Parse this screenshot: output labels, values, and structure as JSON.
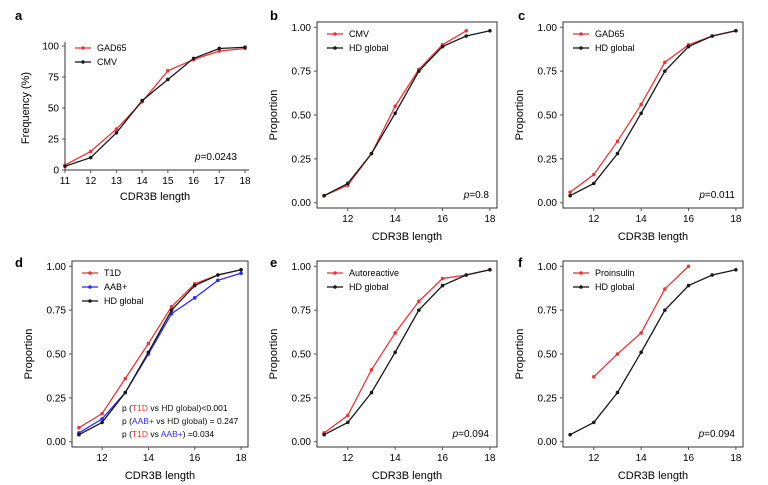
{
  "figure": {
    "panels": [
      "a",
      "b",
      "c",
      "d",
      "e",
      "f"
    ]
  },
  "colors": {
    "red": "#e8373a",
    "black": "#1a1a1a",
    "blue": "#2c2cf0",
    "axis": "#333333",
    "grid_tick": "#555555"
  },
  "chart_data": [
    {
      "panel": "a",
      "type": "line",
      "xlabel": "CDR3B length",
      "ylabel": "Frequency (%)",
      "xlim": [
        11,
        18
      ],
      "ylim": [
        0,
        100
      ],
      "xticks": [
        11,
        12,
        13,
        14,
        15,
        16,
        17,
        18
      ],
      "yticks": [
        0,
        25,
        50,
        75,
        100
      ],
      "ytick_labels": [
        "0",
        "25",
        "50",
        "75",
        "100"
      ],
      "legend": "top-left",
      "pvalue": "=0.0243",
      "series": [
        {
          "name": "GAD65",
          "color": "red",
          "x": [
            11,
            12,
            13,
            14,
            15,
            16,
            17,
            18
          ],
          "y": [
            4,
            15,
            33,
            55,
            80,
            89,
            96,
            98
          ]
        },
        {
          "name": "CMV",
          "color": "black",
          "x": [
            11,
            12,
            13,
            14,
            15,
            16,
            17,
            18
          ],
          "y": [
            3,
            10,
            30,
            56,
            73,
            90,
            98,
            99
          ]
        }
      ]
    },
    {
      "panel": "b",
      "type": "line",
      "xlabel": "CDR3B length",
      "ylabel": "Proportion",
      "xlim": [
        10.7,
        18.3
      ],
      "ylim": [
        -0.03,
        1.03
      ],
      "xticks": [
        12,
        14,
        16,
        18
      ],
      "yticks": [
        0,
        0.25,
        0.5,
        0.75,
        1
      ],
      "ytick_labels": [
        "0.00",
        "0.25",
        "0.50",
        "0.75",
        "1.00"
      ],
      "legend": "top-left",
      "pvalue": "=0.8",
      "series": [
        {
          "name": "CMV",
          "color": "red",
          "x": [
            11,
            12,
            13,
            14,
            15,
            16,
            17
          ],
          "y": [
            0.04,
            0.1,
            0.28,
            0.55,
            0.76,
            0.9,
            0.98
          ]
        },
        {
          "name": "HD global",
          "color": "black",
          "x": [
            11,
            12,
            13,
            14,
            15,
            16,
            17,
            18
          ],
          "y": [
            0.04,
            0.11,
            0.28,
            0.51,
            0.75,
            0.89,
            0.95,
            0.98
          ]
        }
      ]
    },
    {
      "panel": "c",
      "type": "line",
      "xlabel": "CDR3B length",
      "ylabel": "Proportion",
      "xlim": [
        10.7,
        18.3
      ],
      "ylim": [
        -0.03,
        1.03
      ],
      "xticks": [
        12,
        14,
        16,
        18
      ],
      "yticks": [
        0,
        0.25,
        0.5,
        0.75,
        1
      ],
      "ytick_labels": [
        "0.00",
        "0.25",
        "0.50",
        "0.75",
        "1.00"
      ],
      "legend": "top-left",
      "pvalue": "=0.011",
      "series": [
        {
          "name": "GAD65",
          "color": "red",
          "x": [
            11,
            12,
            13,
            14,
            15,
            16,
            17,
            18
          ],
          "y": [
            0.06,
            0.16,
            0.35,
            0.56,
            0.8,
            0.9,
            0.95,
            0.98
          ]
        },
        {
          "name": "HD global",
          "color": "black",
          "x": [
            11,
            12,
            13,
            14,
            15,
            16,
            17,
            18
          ],
          "y": [
            0.04,
            0.11,
            0.28,
            0.51,
            0.75,
            0.89,
            0.95,
            0.98
          ]
        }
      ]
    },
    {
      "panel": "d",
      "type": "line",
      "xlabel": "CDR3B length",
      "ylabel": "Proportion",
      "xlim": [
        10.7,
        18.3
      ],
      "ylim": [
        -0.03,
        1.03
      ],
      "xticks": [
        12,
        14,
        16,
        18
      ],
      "yticks": [
        0,
        0.25,
        0.5,
        0.75,
        1
      ],
      "ytick_labels": [
        "0.00",
        "0.25",
        "0.50",
        "0.75",
        "1.00"
      ],
      "legend": "top-left",
      "series": [
        {
          "name": "T1D",
          "color": "red",
          "x": [
            11,
            12,
            13,
            14,
            15,
            16,
            17,
            18
          ],
          "y": [
            0.08,
            0.16,
            0.36,
            0.56,
            0.77,
            0.9,
            0.95,
            0.98
          ]
        },
        {
          "name": "AAB+",
          "color": "blue",
          "x": [
            11,
            12,
            13,
            14,
            15,
            16,
            17,
            18
          ],
          "y": [
            0.05,
            0.13,
            0.28,
            0.5,
            0.73,
            0.82,
            0.92,
            0.96
          ]
        },
        {
          "name": "HD global",
          "color": "black",
          "x": [
            11,
            12,
            13,
            14,
            15,
            16,
            17,
            18
          ],
          "y": [
            0.04,
            0.11,
            0.28,
            0.51,
            0.75,
            0.89,
            0.95,
            0.98
          ]
        }
      ],
      "pnotes": [
        {
          "pre": "p (",
          "a": "T1D",
          "a_color": "red",
          "mid": " vs ",
          "b": "HD global",
          "b_color": "black",
          "post": ")<0.001"
        },
        {
          "pre": "p (",
          "a": "AAB+",
          "a_color": "blue",
          "mid": " vs ",
          "b": "HD global",
          "b_color": "black",
          "post": ") = 0.247"
        },
        {
          "pre": "p (",
          "a": "T1D",
          "a_color": "red",
          "mid": " vs ",
          "b": "AAB+",
          "b_color": "blue",
          "post": ") =0.034"
        }
      ]
    },
    {
      "panel": "e",
      "type": "line",
      "xlabel": "CDR3B length",
      "ylabel": "Proportion",
      "xlim": [
        10.7,
        18.3
      ],
      "ylim": [
        -0.03,
        1.03
      ],
      "xticks": [
        12,
        14,
        16,
        18
      ],
      "yticks": [
        0,
        0.25,
        0.5,
        0.75,
        1
      ],
      "ytick_labels": [
        "0.00",
        "0.25",
        "0.50",
        "0.75",
        "1.00"
      ],
      "legend": "top-left",
      "pvalue": "=0.094",
      "series": [
        {
          "name": "Autoreactive",
          "color": "red",
          "x": [
            11,
            12,
            13,
            14,
            15,
            16,
            17,
            18
          ],
          "y": [
            0.05,
            0.15,
            0.41,
            0.62,
            0.8,
            0.93,
            0.95,
            0.98
          ]
        },
        {
          "name": "HD global",
          "color": "black",
          "x": [
            11,
            12,
            13,
            14,
            15,
            16,
            17,
            18
          ],
          "y": [
            0.04,
            0.11,
            0.28,
            0.51,
            0.75,
            0.89,
            0.95,
            0.98
          ]
        }
      ]
    },
    {
      "panel": "f",
      "type": "line",
      "xlabel": "CDR3B length",
      "ylabel": "Proportion",
      "xlim": [
        10.7,
        18.3
      ],
      "ylim": [
        -0.03,
        1.03
      ],
      "xticks": [
        12,
        14,
        16,
        18
      ],
      "yticks": [
        0,
        0.25,
        0.5,
        0.75,
        1
      ],
      "ytick_labels": [
        "0.00",
        "0.25",
        "0.50",
        "0.75",
        "1.00"
      ],
      "legend": "top-left",
      "pvalue": "=0.094",
      "series": [
        {
          "name": "Proinsulin",
          "color": "red",
          "x": [
            12,
            13,
            14,
            15,
            16
          ],
          "y": [
            0.37,
            0.5,
            0.62,
            0.87,
            1.0
          ]
        },
        {
          "name": "HD global",
          "color": "black",
          "x": [
            11,
            12,
            13,
            14,
            15,
            16,
            17,
            18
          ],
          "y": [
            0.04,
            0.11,
            0.28,
            0.51,
            0.75,
            0.89,
            0.95,
            0.98
          ]
        }
      ]
    }
  ]
}
